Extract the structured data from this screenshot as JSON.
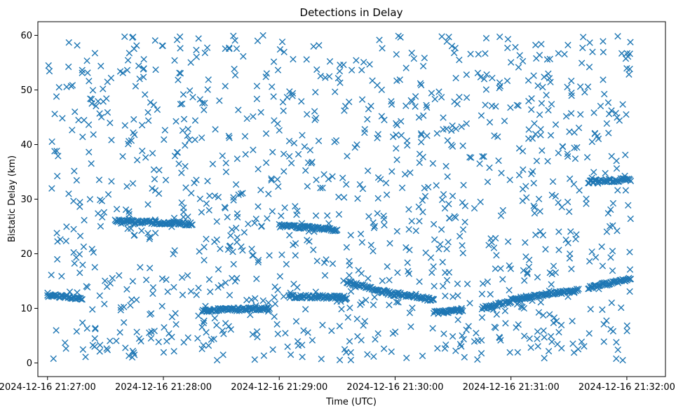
{
  "chart_data": {
    "type": "scatter",
    "title": "Detections in Delay",
    "xlabel": "Time (UTC)",
    "ylabel": "Bistatic Delay (km)",
    "xlim": [
      "2024-12-16 21:26:55",
      "2024-12-16 21:32:20"
    ],
    "ylim": [
      -2.5,
      62.5
    ],
    "x_ticks": [
      "2024-12-16 21:27:00",
      "2024-12-16 21:28:00",
      "2024-12-16 21:29:00",
      "2024-12-16 21:30:00",
      "2024-12-16 21:31:00",
      "2024-12-16 21:32:00"
    ],
    "y_ticks": [
      "0",
      "10",
      "20",
      "30",
      "40",
      "50",
      "60"
    ],
    "y_tick_values": [
      0,
      10,
      20,
      30,
      40,
      50,
      60
    ],
    "grid": false,
    "marker": "x",
    "color": "#1f77b4",
    "x_range_data": [
      "2024-12-16 21:27:00",
      "2024-12-16 21:32:02"
    ],
    "y_range_data": [
      0.5,
      60
    ],
    "tracks": [
      {
        "x": [
          "2024-12-16 21:27:00",
          "2024-12-16 21:27:18"
        ],
        "y": [
          12.4,
          11.9
        ]
      },
      {
        "x": [
          "2024-12-16 21:28:20",
          "2024-12-16 21:28:55"
        ],
        "y": [
          9.6,
          10.0
        ]
      },
      {
        "x": [
          "2024-12-16 21:29:05",
          "2024-12-16 21:29:35"
        ],
        "y": [
          12.2,
          12.0
        ]
      },
      {
        "x": [
          "2024-12-16 21:29:35",
          "2024-12-16 21:30:00"
        ],
        "y": [
          14.8,
          12.5
        ]
      },
      {
        "x": [
          "2024-12-16 21:30:00",
          "2024-12-16 21:30:20"
        ],
        "y": [
          12.8,
          11.5
        ]
      },
      {
        "x": [
          "2024-12-16 21:30:20",
          "2024-12-16 21:30:35"
        ],
        "y": [
          9.2,
          9.7
        ]
      },
      {
        "x": [
          "2024-12-16 21:30:45",
          "2024-12-16 21:31:00"
        ],
        "y": [
          10.0,
          11.2
        ]
      },
      {
        "x": [
          "2024-12-16 21:31:00",
          "2024-12-16 21:31:35"
        ],
        "y": [
          11.6,
          13.4
        ]
      },
      {
        "x": [
          "2024-12-16 21:31:40",
          "2024-12-16 21:32:02"
        ],
        "y": [
          13.8,
          15.4
        ]
      },
      {
        "x": [
          "2024-12-16 21:27:35",
          "2024-12-16 21:28:15"
        ],
        "y": [
          26.0,
          25.5
        ]
      },
      {
        "x": [
          "2024-12-16 21:29:00",
          "2024-12-16 21:29:30"
        ],
        "y": [
          25.1,
          24.4
        ]
      },
      {
        "x": [
          "2024-12-16 21:31:40",
          "2024-12-16 21:32:02"
        ],
        "y": [
          33.2,
          33.6
        ]
      }
    ]
  }
}
